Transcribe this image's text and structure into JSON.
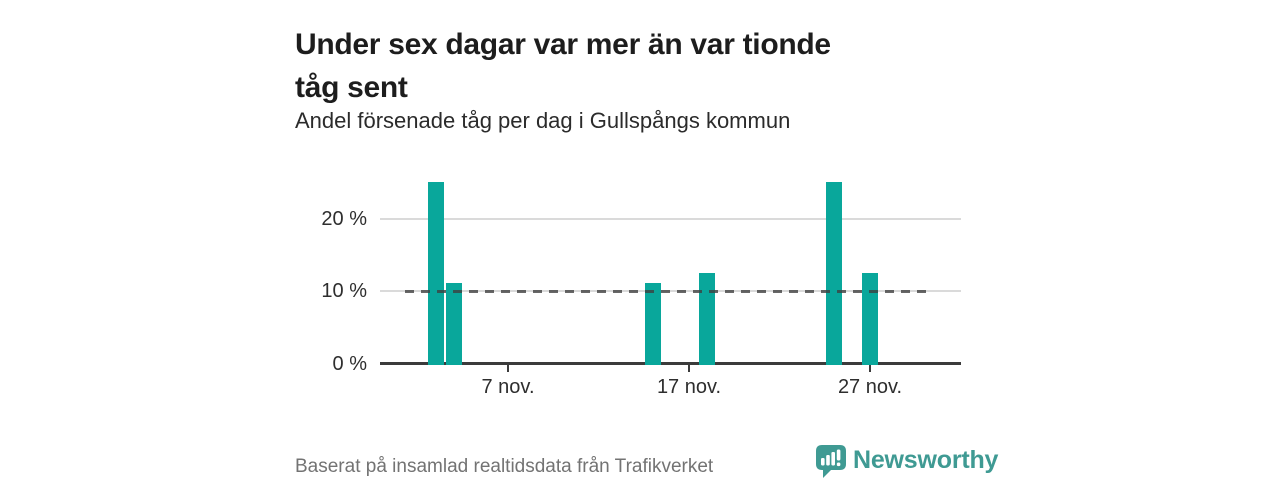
{
  "header": {
    "title_line1": "Under sex dagar var mer än var tionde",
    "title_line2": "tåg sent",
    "title_full": "Under sex dagar var mer än var tionde tåg sent",
    "subtitle": "Andel försenade tåg per dag i Gullspångs kommun"
  },
  "chart_data": {
    "type": "bar",
    "title": "Under sex dagar var mer än var tionde tåg sent",
    "subtitle": "Andel försenade tåg per dag i Gullspångs kommun",
    "unit": "%",
    "x_unit": "dag i november",
    "bars": [
      {
        "date": "3 nov",
        "day": 3,
        "value": 25
      },
      {
        "date": "4 nov",
        "day": 4,
        "value": 11.1
      },
      {
        "date": "15 nov",
        "day": 15,
        "value": 11.1
      },
      {
        "date": "18 nov",
        "day": 18,
        "value": 12.5
      },
      {
        "date": "25 nov",
        "day": 25,
        "value": 25
      },
      {
        "date": "27 nov",
        "day": 27,
        "value": 12.5
      }
    ],
    "x_ticks": [
      {
        "day": 7,
        "label": "7 nov."
      },
      {
        "day": 17,
        "label": "17 nov."
      },
      {
        "day": 27,
        "label": "27 nov."
      }
    ],
    "y_ticks": [
      {
        "value": 0,
        "label": "0 %"
      },
      {
        "value": 10,
        "label": "10 %"
      },
      {
        "value": 20,
        "label": "20 %"
      }
    ],
    "reference_line": {
      "value": 10,
      "style": "dashed"
    },
    "ylim": [
      0,
      26
    ],
    "grid": "horizontal",
    "legend": "none",
    "bar_color": "#09a79b"
  },
  "footer": {
    "source": "Baserat på insamlad realtidsdata från Trafikverket",
    "brand": "Newsworthy"
  },
  "colors": {
    "background": "#ffffff",
    "bar": "#09a79b",
    "brand_teal": "#3f9a93",
    "title_text": "#1d1d1d",
    "axis_text": "#2e2e2e",
    "muted_text": "#737373",
    "gridline": "#dadada",
    "axis_line": "#3b3b3b",
    "reference_line": "#3e3e3e"
  }
}
